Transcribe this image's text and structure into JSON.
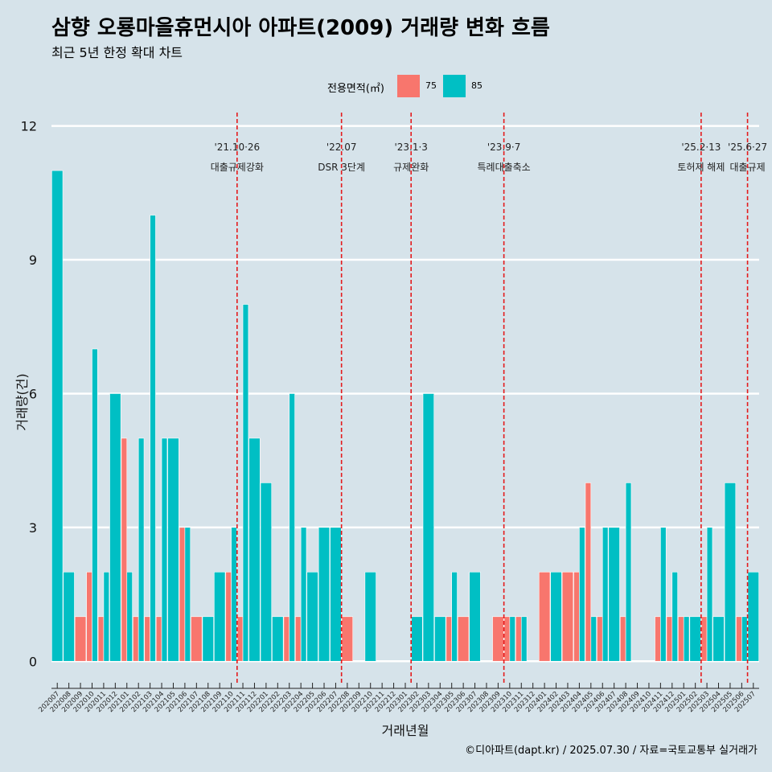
{
  "title": "삼향 오룡마을휴먼시아 아파트(2009) 거래량 변화 흐름",
  "subtitle": "최근 5년 한정 확대 차트",
  "caption": "©디아파트(dapt.kr) / 2025.07.30 / 자료=국토교통부 실거래가",
  "legend": {
    "title": "전용면적(㎡)",
    "items": [
      {
        "label": "75",
        "color": "#f8766d"
      },
      {
        "label": "85",
        "color": "#00bfc4"
      }
    ]
  },
  "chart_data": {
    "type": "bar",
    "xlabel": "거래년월",
    "ylabel": "거래량(건)",
    "ylim": [
      -0.5,
      12.3
    ],
    "yticks": [
      0,
      3,
      6,
      9,
      12
    ],
    "categories": [
      "202007",
      "202008",
      "202009",
      "202010",
      "202011",
      "202012",
      "202101",
      "202102",
      "202103",
      "202104",
      "202105",
      "202106",
      "202107",
      "202108",
      "202109",
      "202110",
      "202111",
      "202112",
      "202201",
      "202202",
      "202203",
      "202204",
      "202205",
      "202206",
      "202207",
      "202208",
      "202209",
      "202210",
      "202211",
      "202212",
      "202301",
      "202302",
      "202303",
      "202304",
      "202305",
      "202306",
      "202307",
      "202308",
      "202309",
      "202310",
      "202311",
      "202312",
      "202401",
      "202402",
      "202403",
      "202404",
      "202405",
      "202406",
      "202407",
      "202408",
      "202409",
      "202410",
      "202411",
      "202412",
      "202501",
      "202502",
      "202503",
      "202504",
      "202505",
      "202506",
      "202507"
    ],
    "series": [
      {
        "name": "75",
        "color": "#f8766d",
        "values": [
          0,
          0,
          1,
          2,
          1,
          0,
          5,
          1,
          1,
          1,
          0,
          3,
          1,
          0,
          0,
          2,
          1,
          0,
          0,
          0,
          1,
          1,
          0,
          0,
          0,
          1,
          0,
          0,
          0,
          0,
          0,
          0,
          0,
          0,
          1,
          1,
          0,
          0,
          1,
          1,
          1,
          0,
          2,
          0,
          2,
          2,
          4,
          1,
          0,
          1,
          0,
          0,
          1,
          1,
          1,
          0,
          1,
          0,
          0,
          1,
          0
        ]
      },
      {
        "name": "85",
        "color": "#00bfc4",
        "values": [
          11,
          2,
          0,
          7,
          2,
          6,
          2,
          5,
          10,
          5,
          5,
          3,
          0,
          1,
          2,
          3,
          8,
          5,
          4,
          1,
          6,
          3,
          2,
          3,
          3,
          0,
          0,
          2,
          0,
          0,
          0,
          1,
          6,
          1,
          2,
          0,
          2,
          0,
          0,
          1,
          1,
          0,
          0,
          2,
          0,
          3,
          1,
          3,
          3,
          4,
          0,
          0,
          3,
          2,
          1,
          1,
          3,
          1,
          4,
          1,
          2
        ]
      }
    ],
    "events": [
      {
        "date": "'21.10·26",
        "label": "대출규제강화",
        "after": "202110"
      },
      {
        "date": "'22.07",
        "label": "DSR 3단계",
        "after": "202207"
      },
      {
        "date": "'23.1·3",
        "label": "규제완화",
        "after": "202301"
      },
      {
        "date": "'23.9·7",
        "label": "특례대출축소",
        "after": "202309"
      },
      {
        "date": "'25.2·13",
        "label": "토허제 해제",
        "after": "202502"
      },
      {
        "date": "'25.6·27",
        "label": "대출규제",
        "after": "202506"
      }
    ]
  }
}
